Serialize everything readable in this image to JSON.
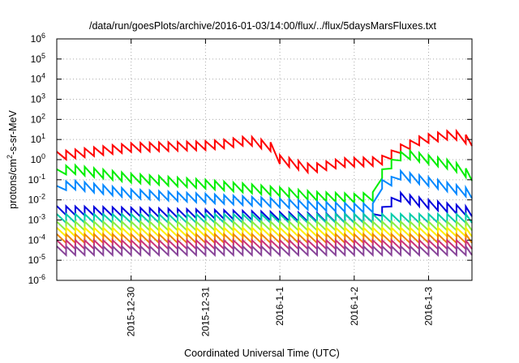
{
  "chart_data": {
    "type": "line",
    "title": "/data/run/goesPlots/archive/2016-01-03/14:00/flux/../flux/5daysMarsFluxes.txt",
    "xlabel": "Coordinated Universal Time (UTC)",
    "ylabel": {
      "base": "protons/cm",
      "sup": "2",
      "rest": "-s-sr-MeV"
    },
    "y_scale": "log",
    "ylim": [
      1e-06,
      1000000.0
    ],
    "xlim": [
      "2015-12-29T00:00",
      "2016-01-03T14:00"
    ],
    "grid": true,
    "x_ticks": [
      {
        "value": "2015-12-30",
        "label": "2015-12-30"
      },
      {
        "value": "2015-12-31",
        "label": "2015-12-31"
      },
      {
        "value": "2016-01-01",
        "label": "2016-1-1"
      },
      {
        "value": "2016-01-02",
        "label": "2016-1-2"
      },
      {
        "value": "2016-01-03",
        "label": "2016-1-3"
      }
    ],
    "y_ticks": [
      {
        "exp": -6,
        "base": "10",
        "sup": "-6"
      },
      {
        "exp": -5,
        "base": "10",
        "sup": "-5"
      },
      {
        "exp": -4,
        "base": "10",
        "sup": "-4"
      },
      {
        "exp": -3,
        "base": "10",
        "sup": "-3"
      },
      {
        "exp": -2,
        "base": "10",
        "sup": "-2"
      },
      {
        "exp": -1,
        "base": "10",
        "sup": "-1"
      },
      {
        "exp": 0,
        "base": "10",
        "sup": "0"
      },
      {
        "exp": 1,
        "base": "10",
        "sup": "1"
      },
      {
        "exp": 2,
        "base": "10",
        "sup": "2"
      },
      {
        "exp": 3,
        "base": "10",
        "sup": "3"
      },
      {
        "exp": 4,
        "base": "10",
        "sup": "4"
      },
      {
        "exp": 5,
        "base": "10",
        "sup": "5"
      },
      {
        "exp": 6,
        "base": "10",
        "sup": "6"
      }
    ],
    "series": [
      {
        "color": "#ff0000",
        "sawtooth": true,
        "points": [
          [
            "2015-12-29T00:00",
            1.5
          ],
          [
            "2015-12-29T12:00",
            2.5
          ],
          [
            "2015-12-30T00:00",
            4
          ],
          [
            "2015-12-31T00:00",
            5
          ],
          [
            "2015-12-31T06:00",
            6
          ],
          [
            "2015-12-31T14:00",
            9
          ],
          [
            "2015-12-31T22:00",
            4
          ],
          [
            "2016-01-01T00:00",
            1.0
          ],
          [
            "2016-01-01T10:00",
            0.35
          ],
          [
            "2016-01-01T20:00",
            0.7
          ],
          [
            "2016-01-02T06:00",
            0.8
          ],
          [
            "2016-01-02T10:00",
            1.0
          ],
          [
            "2016-01-02T14:00",
            3
          ],
          [
            "2016-01-02T22:00",
            10
          ],
          [
            "2016-01-03T08:00",
            18
          ],
          [
            "2016-01-03T14:00",
            8
          ]
        ]
      },
      {
        "color": "#00ee00",
        "sawtooth": true,
        "points": [
          [
            "2015-12-29T00:00",
            0.2
          ],
          [
            "2015-12-29T04:00",
            0.35
          ],
          [
            "2015-12-30T00:00",
            0.12
          ],
          [
            "2015-12-31T00:00",
            0.06
          ],
          [
            "2015-12-31T12:00",
            0.04
          ],
          [
            "2016-01-01T00:00",
            0.025
          ],
          [
            "2016-01-01T12:00",
            0.015
          ],
          [
            "2016-01-02T00:00",
            0.012
          ],
          [
            "2016-01-02T07:00",
            0.015
          ],
          [
            "2016-01-02T09:00",
            0.2
          ],
          [
            "2016-01-02T10:00",
            0.12
          ],
          [
            "2016-01-02T12:00",
            0.6
          ],
          [
            "2016-01-02T16:00",
            2.0
          ],
          [
            "2016-01-02T22:00",
            1.2
          ],
          [
            "2016-01-03T08:00",
            0.5
          ],
          [
            "2016-01-03T14:00",
            0.15
          ]
        ]
      },
      {
        "color": "#0088ff",
        "sawtooth": true,
        "points": [
          [
            "2015-12-29T00:00",
            0.03
          ],
          [
            "2015-12-29T04:00",
            0.06
          ],
          [
            "2015-12-30T00:00",
            0.02
          ],
          [
            "2015-12-31T00:00",
            0.012
          ],
          [
            "2016-01-01T00:00",
            0.007
          ],
          [
            "2016-01-01T12:00",
            0.005
          ],
          [
            "2016-01-02T00:00",
            0.004
          ],
          [
            "2016-01-02T07:00",
            0.004
          ],
          [
            "2016-01-02T09:00",
            0.06
          ],
          [
            "2016-01-02T10:00",
            0.04
          ],
          [
            "2016-01-02T14:00",
            0.18
          ],
          [
            "2016-01-03T00:00",
            0.08
          ],
          [
            "2016-01-03T14:00",
            0.02
          ]
        ]
      },
      {
        "color": "#0000dd",
        "sawtooth": true,
        "points": [
          [
            "2015-12-29T00:00",
            0.003
          ],
          [
            "2015-12-30T00:00",
            0.0025
          ],
          [
            "2015-12-31T00:00",
            0.002
          ],
          [
            "2016-01-01T00:00",
            0.0015
          ],
          [
            "2016-01-02T00:00",
            0.0012
          ],
          [
            "2016-01-02T07:00",
            0.0012
          ],
          [
            "2016-01-02T10:00",
            0.004
          ],
          [
            "2016-01-02T14:00",
            0.015
          ],
          [
            "2016-01-03T00:00",
            0.006
          ],
          [
            "2016-01-03T14:00",
            0.0025
          ]
        ]
      },
      {
        "color": "#00ccaa",
        "sawtooth": true,
        "points": [
          [
            "2015-12-29T00:00",
            0.0012
          ],
          [
            "2016-01-03T14:00",
            0.0012
          ]
        ]
      },
      {
        "color": "#88ee44",
        "sawtooth": true,
        "points": [
          [
            "2015-12-29T00:00",
            0.0005
          ],
          [
            "2016-01-03T14:00",
            0.0005
          ]
        ]
      },
      {
        "color": "#ffee00",
        "sawtooth": true,
        "points": [
          [
            "2015-12-29T00:00",
            0.00025
          ],
          [
            "2016-01-03T14:00",
            0.00025
          ]
        ]
      },
      {
        "color": "#ee8800",
        "sawtooth": true,
        "points": [
          [
            "2015-12-29T00:00",
            0.00012
          ],
          [
            "2016-01-03T14:00",
            0.00012
          ]
        ]
      },
      {
        "color": "#cc3377",
        "sawtooth": true,
        "points": [
          [
            "2015-12-29T00:00",
            6e-05
          ],
          [
            "2016-01-03T14:00",
            6e-05
          ]
        ]
      },
      {
        "color": "#884499",
        "sawtooth": true,
        "points": [
          [
            "2015-12-29T00:00",
            3e-05
          ],
          [
            "2016-01-03T14:00",
            3e-05
          ]
        ]
      }
    ]
  }
}
